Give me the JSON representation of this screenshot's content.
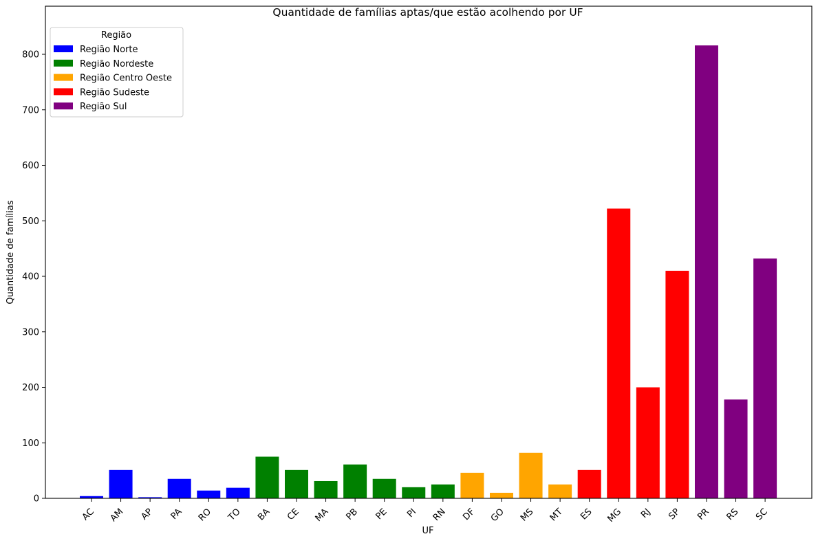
{
  "chart_data": {
    "type": "bar",
    "title": "Quantidade de famílias aptas/que estão acolhendo por UF",
    "xlabel": "UF",
    "ylabel": "Quantidade de famílias",
    "ylim": [
      0,
      860
    ],
    "yticks": [
      0,
      100,
      200,
      300,
      400,
      500,
      600,
      700,
      800
    ],
    "grid": false,
    "legend": {
      "title": "Região",
      "position": "upper left",
      "entries": [
        {
          "label": "Região Norte",
          "color": "#0000ff"
        },
        {
          "label": "Região Nordeste",
          "color": "#008000"
        },
        {
          "label": "Região Centro Oeste",
          "color": "#ffa500"
        },
        {
          "label": "Região Sudeste",
          "color": "#ff0000"
        },
        {
          "label": "Região Sul",
          "color": "#800080"
        }
      ]
    },
    "categories": [
      "AC",
      "AM",
      "AP",
      "PA",
      "RO",
      "TO",
      "BA",
      "CE",
      "MA",
      "PB",
      "PE",
      "PI",
      "RN",
      "DF",
      "GO",
      "MS",
      "MT",
      "ES",
      "MG",
      "RJ",
      "SP",
      "PR",
      "RS",
      "SC"
    ],
    "values": [
      4,
      51,
      2,
      35,
      14,
      19,
      75,
      51,
      31,
      61,
      35,
      20,
      25,
      46,
      10,
      82,
      25,
      51,
      522,
      200,
      410,
      816,
      178,
      432
    ],
    "regions": [
      "Região Norte",
      "Região Norte",
      "Região Norte",
      "Região Norte",
      "Região Norte",
      "Região Norte",
      "Região Nordeste",
      "Região Nordeste",
      "Região Nordeste",
      "Região Nordeste",
      "Região Nordeste",
      "Região Nordeste",
      "Região Nordeste",
      "Região Centro Oeste",
      "Região Centro Oeste",
      "Região Centro Oeste",
      "Região Centro Oeste",
      "Região Sudeste",
      "Região Sudeste",
      "Região Sudeste",
      "Região Sudeste",
      "Região Sul",
      "Região Sul",
      "Região Sul"
    ],
    "series": [
      {
        "name": "Região Norte",
        "color": "#0000ff",
        "categories": [
          "AC",
          "AM",
          "AP",
          "PA",
          "RO",
          "TO"
        ],
        "values": [
          4,
          51,
          2,
          35,
          14,
          19
        ]
      },
      {
        "name": "Região Nordeste",
        "color": "#008000",
        "categories": [
          "BA",
          "CE",
          "MA",
          "PB",
          "PE",
          "PI",
          "RN"
        ],
        "values": [
          75,
          51,
          31,
          61,
          35,
          20,
          25
        ]
      },
      {
        "name": "Região Centro Oeste",
        "color": "#ffa500",
        "categories": [
          "DF",
          "GO",
          "MS",
          "MT"
        ],
        "values": [
          46,
          10,
          82,
          25
        ]
      },
      {
        "name": "Região Sudeste",
        "color": "#ff0000",
        "categories": [
          "ES",
          "MG",
          "RJ",
          "SP"
        ],
        "values": [
          51,
          522,
          200,
          410
        ]
      },
      {
        "name": "Região Sul",
        "color": "#800080",
        "categories": [
          "PR",
          "RS",
          "SC"
        ],
        "values": [
          816,
          178,
          432
        ]
      }
    ]
  }
}
